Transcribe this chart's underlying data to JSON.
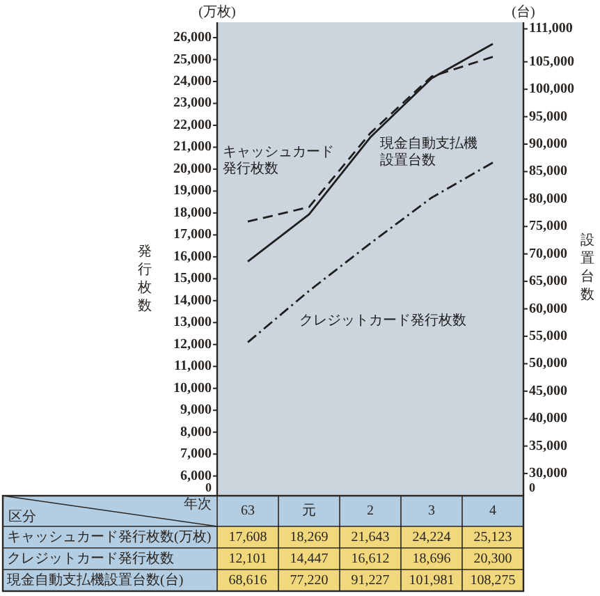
{
  "chart_data": {
    "type": "line",
    "ylabel": "発行枚数",
    "y2label": "設置台数",
    "categories": [
      "63",
      "元",
      "2",
      "3",
      "4"
    ],
    "series": [
      {
        "name": "キャッシュカード発行枚数",
        "color": "#1e1e1e",
        "line_style": "dashed",
        "values": [
          17608,
          18269,
          21643,
          24224,
          25123
        ],
        "value_labels": [
          "17,608",
          "18,269",
          "21,643",
          "24,224",
          "25,123"
        ]
      },
      {
        "name": "クレジットカード発行枚数",
        "color": "#1e1e1e",
        "line_style": "dashdot",
        "values": [
          12101,
          14447,
          16612,
          18696,
          20300
        ],
        "value_labels": [
          "12,101",
          "14,447",
          "16,612",
          "18,696",
          "20,300"
        ]
      },
      {
        "name": "現金自動支払機設置台数",
        "color": "#1e1e1e",
        "line_style": "solid",
        "axis": "y2",
        "values": [
          68616,
          77220,
          91227,
          101981,
          108275
        ],
        "value_labels": [
          "68,616",
          "77,220",
          "91,227",
          "101,981",
          "108,275"
        ]
      }
    ],
    "ylim": [
      5100,
      26700
    ],
    "yticks": [
      {
        "value": 6000,
        "label": "6,000"
      },
      {
        "value": 7000,
        "label": "7,000"
      },
      {
        "value": 8000,
        "label": "8,000"
      },
      {
        "value": 9000,
        "label": "9,000"
      },
      {
        "value": 10000,
        "label": "10,000"
      },
      {
        "value": 11000,
        "label": "11,000"
      },
      {
        "value": 12000,
        "label": "12,000"
      },
      {
        "value": 13000,
        "label": "13,000"
      },
      {
        "value": 14000,
        "label": "14,000"
      },
      {
        "value": 15000,
        "label": "15,000"
      },
      {
        "value": 16000,
        "label": "16,000"
      },
      {
        "value": 17000,
        "label": "17,000"
      },
      {
        "value": 18000,
        "label": "18,000"
      },
      {
        "value": 19000,
        "label": "19,000"
      },
      {
        "value": 20000,
        "label": "20,000"
      },
      {
        "value": 21000,
        "label": "21,000"
      },
      {
        "value": 22000,
        "label": "22,000"
      },
      {
        "value": 23000,
        "label": "23,000"
      },
      {
        "value": 24000,
        "label": "24,000"
      },
      {
        "value": 25000,
        "label": "25,000"
      },
      {
        "value": 26000,
        "label": "26,000"
      }
    ],
    "y2lim": [
      25950,
      112200
    ],
    "y2ticks": [
      {
        "value": 30000,
        "label": "30,000"
      },
      {
        "value": 35000,
        "label": "35,000"
      },
      {
        "value": 40000,
        "label": "40,000"
      },
      {
        "value": 45000,
        "label": "45,000"
      },
      {
        "value": 50000,
        "label": "50,000"
      },
      {
        "value": 55000,
        "label": "55,000"
      },
      {
        "value": 60000,
        "label": "60,000"
      },
      {
        "value": 65000,
        "label": "65,000"
      },
      {
        "value": 70000,
        "label": "70,000"
      },
      {
        "value": 75000,
        "label": "75,000"
      },
      {
        "value": 80000,
        "label": "80,000"
      },
      {
        "value": 85000,
        "label": "85,000"
      },
      {
        "value": 90000,
        "label": "90,000"
      },
      {
        "value": 95000,
        "label": "95,000"
      },
      {
        "value": 100000,
        "label": "100,000"
      },
      {
        "value": 105000,
        "label": "105,000"
      },
      {
        "value": 111000,
        "label": "111,000"
      }
    ],
    "annotations": [
      "(万枚)",
      "(台)",
      "0",
      "0",
      "区分",
      "年次",
      "キャッシュカード発行枚数(万枚)",
      "クレジットカード発行枚数",
      "現金自動支払機設置台数(台)"
    ]
  }
}
